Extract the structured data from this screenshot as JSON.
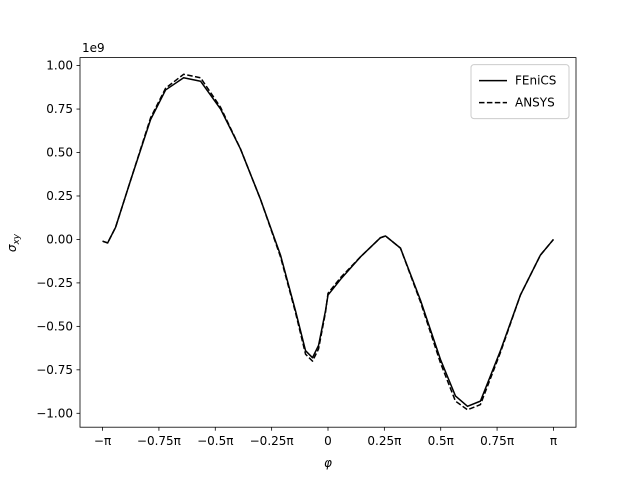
{
  "chart_data": {
    "type": "line",
    "xlabel": "φ",
    "ylabel": "σ",
    "ylabel_subscript": "xy",
    "y_offset_label": "1e9",
    "x": [
      -3.1416,
      -3.071,
      -2.96,
      -2.751,
      -2.472,
      -2.263,
      -2.012,
      -1.776,
      -1.497,
      -1.219,
      -0.94,
      -0.662,
      -0.453,
      -0.313,
      -0.216,
      -0.132,
      -0.035,
      0.0,
      0.174,
      0.453,
      0.731,
      0.801,
      1.01,
      1.289,
      1.567,
      1.776,
      1.944,
      2.124,
      2.403,
      2.681,
      2.96,
      3.1416
    ],
    "series": [
      {
        "name": "FEniCS",
        "color": "#000000",
        "dash": "solid",
        "values": [
          -0.01,
          -0.02,
          0.07,
          0.34,
          0.69,
          0.86,
          0.93,
          0.91,
          0.75,
          0.52,
          0.23,
          -0.09,
          -0.41,
          -0.64,
          -0.68,
          -0.61,
          -0.41,
          -0.32,
          -0.23,
          -0.1,
          0.01,
          0.02,
          -0.05,
          -0.35,
          -0.69,
          -0.9,
          -0.96,
          -0.93,
          -0.64,
          -0.32,
          -0.09,
          0.0
        ]
      },
      {
        "name": "ANSYS",
        "color": "#000000",
        "dash": "dashed",
        "values": [
          -0.01,
          -0.02,
          0.07,
          0.34,
          0.7,
          0.87,
          0.95,
          0.93,
          0.76,
          0.52,
          0.23,
          -0.1,
          -0.42,
          -0.66,
          -0.7,
          -0.63,
          -0.42,
          -0.31,
          -0.22,
          -0.1,
          0.01,
          0.02,
          -0.05,
          -0.36,
          -0.71,
          -0.93,
          -0.98,
          -0.95,
          -0.65,
          -0.32,
          -0.09,
          0.0
        ]
      }
    ],
    "xlim": [
      -3.456,
      3.456
    ],
    "xticks": [
      {
        "value": -3.1416,
        "label": "−π"
      },
      {
        "value": -2.3562,
        "label": "−0.75π"
      },
      {
        "value": -1.5708,
        "label": "−0.5π"
      },
      {
        "value": -0.7854,
        "label": "−0.25π"
      },
      0,
      {
        "value": 0.7854,
        "label": "0.25π"
      },
      {
        "value": 1.5708,
        "label": "0.5π"
      },
      {
        "value": 2.3562,
        "label": "0.75π"
      },
      {
        "value": 3.1416,
        "label": "π"
      }
    ],
    "ylim": [
      -1.08,
      1.046
    ],
    "yticks": [
      {
        "value": -1,
        "label": "−1.00"
      },
      {
        "value": -0.75,
        "label": "−0.75"
      },
      {
        "value": -0.5,
        "label": "−0.50"
      },
      {
        "value": -0.25,
        "label": "−0.25"
      },
      {
        "value": 0,
        "label": "0.00"
      },
      {
        "value": 0.25,
        "label": "0.25"
      },
      {
        "value": 0.5,
        "label": "0.50"
      },
      {
        "value": 0.75,
        "label": "0.75"
      },
      {
        "value": 1,
        "label": "1.00"
      }
    ],
    "legend": "upper right"
  }
}
